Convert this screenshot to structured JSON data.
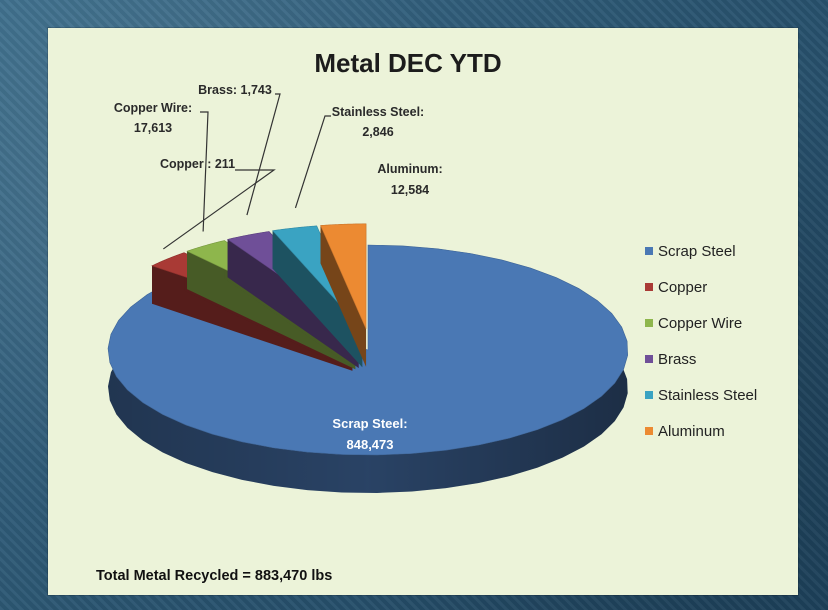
{
  "chart_data": {
    "type": "pie",
    "title": "Metal DEC YTD",
    "slices": [
      {
        "name": "Scrap Steel",
        "value": 848473,
        "color": "#4a78b4",
        "label": "Scrap Steel:",
        "label_value": "848,473"
      },
      {
        "name": "Copper",
        "value": 211,
        "color": "#a93a35",
        "label": "Copper : 211",
        "label_value": ""
      },
      {
        "name": "Copper Wire",
        "value": 17613,
        "color": "#8eb64c",
        "label": "Copper Wire:",
        "label_value": "17,613"
      },
      {
        "name": "Brass",
        "value": 1743,
        "color": "#6f4f98",
        "label": "Brass: 1,743",
        "label_value": ""
      },
      {
        "name": "Stainless Steel",
        "value": 2846,
        "color": "#3aa3c2",
        "label": "Stainless Steel:",
        "label_value": "2,846"
      },
      {
        "name": "Aluminum",
        "value": 12584,
        "color": "#ec8a32",
        "label": "Aluminum:",
        "label_value": "12,584"
      }
    ],
    "legend_position": "right",
    "footer": "Total Metal Recycled = 883,470 lbs"
  }
}
